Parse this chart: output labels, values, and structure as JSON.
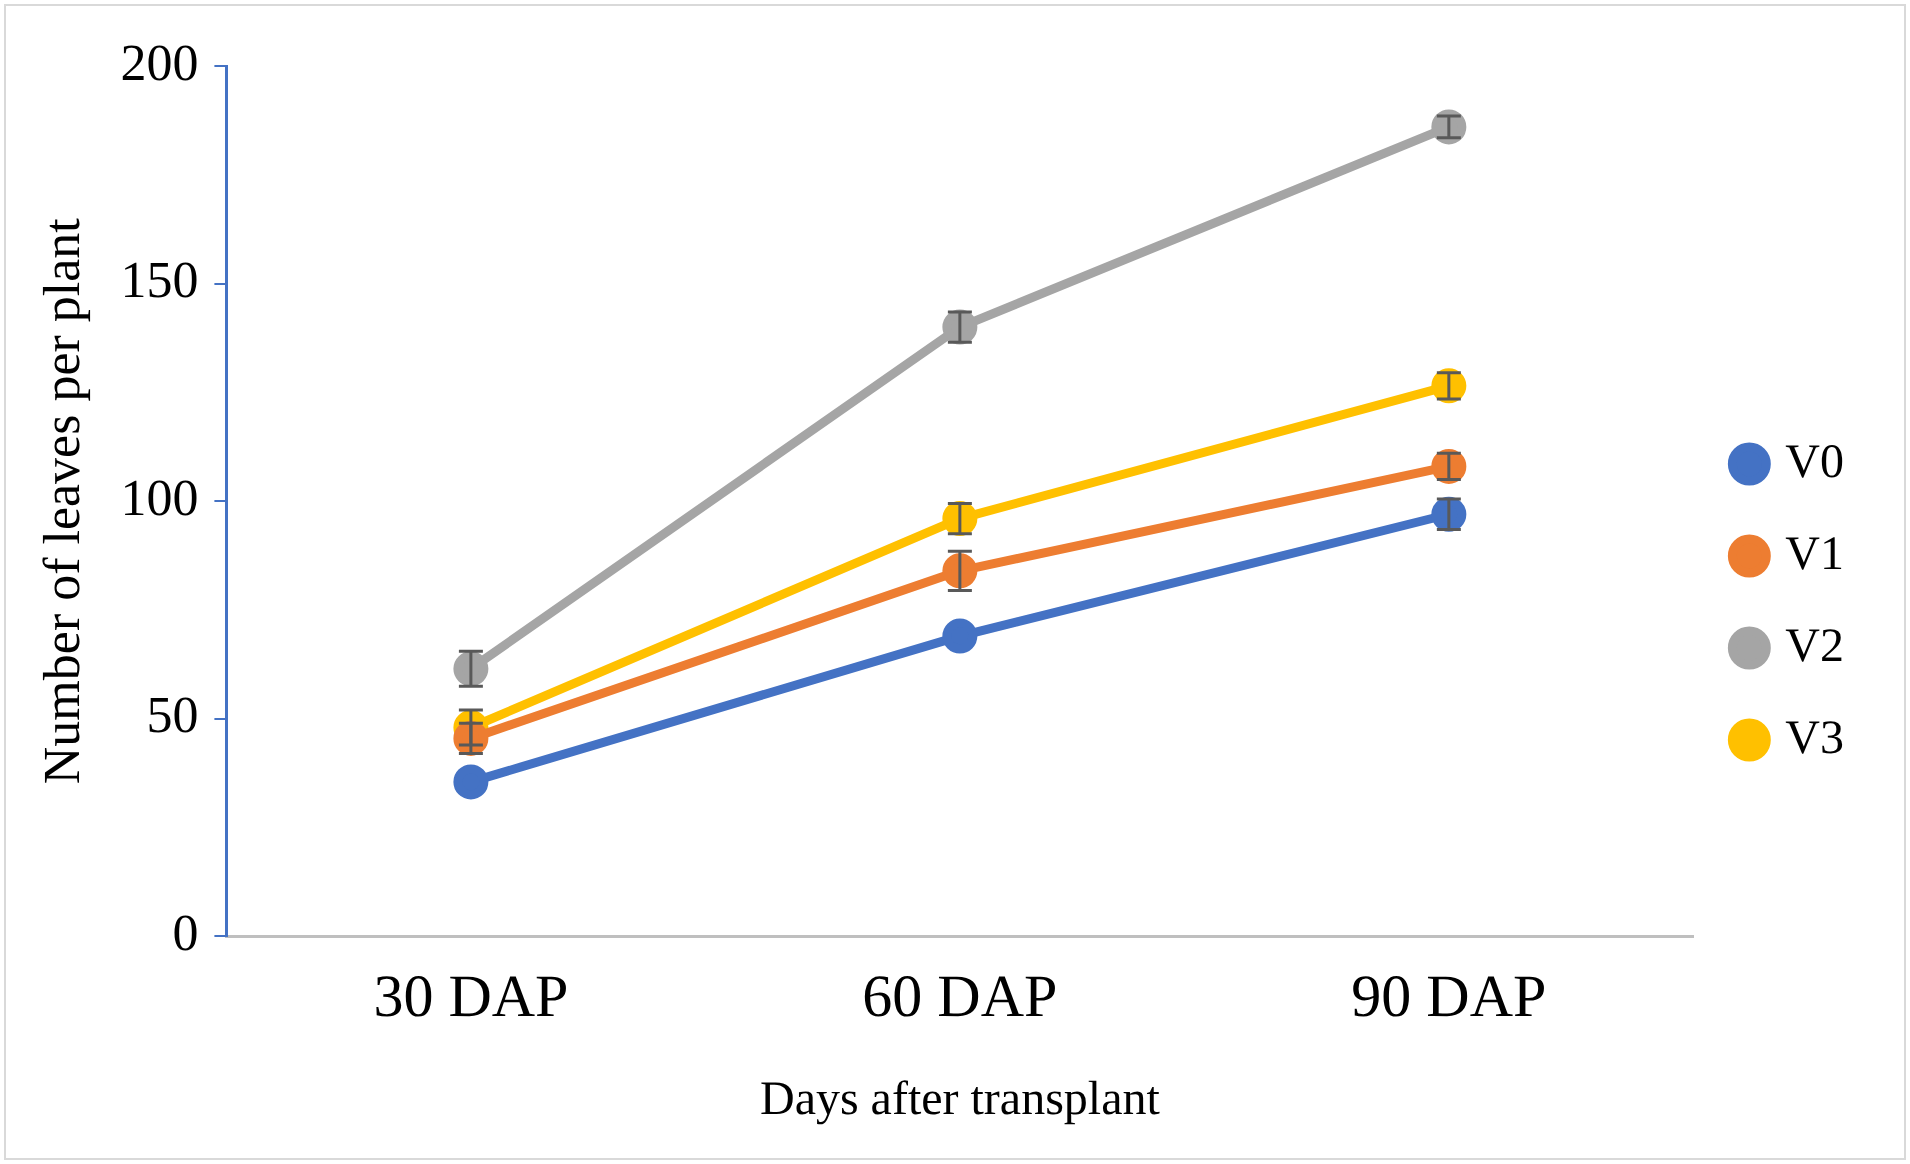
{
  "chart_data": {
    "type": "line",
    "xlabel": "Days after transplant",
    "ylabel": "Number of leaves per plant",
    "categories": [
      "30 DAP",
      "60 DAP",
      "90 DAP"
    ],
    "series": [
      {
        "name": "V0",
        "color": "#4472c4",
        "values": [
          35.5,
          69,
          97
        ],
        "errors": [
          null,
          null,
          3.5
        ]
      },
      {
        "name": "V1",
        "color": "#ed7d31",
        "values": [
          45.5,
          84,
          108
        ],
        "errors": [
          3.5,
          4.5,
          3
        ]
      },
      {
        "name": "V2",
        "color": "#a5a5a5",
        "values": [
          61.5,
          140,
          186
        ],
        "errors": [
          4,
          3.5,
          2.5
        ]
      },
      {
        "name": "V3",
        "color": "#ffc000",
        "values": [
          48,
          96,
          126.5
        ],
        "errors": [
          4,
          3.5,
          3
        ]
      }
    ],
    "ylim": [
      0,
      200
    ],
    "yticks": [
      0,
      50,
      100,
      150,
      200
    ],
    "grid": false,
    "legend": "right",
    "marker": "circle",
    "line_style": "solid"
  }
}
